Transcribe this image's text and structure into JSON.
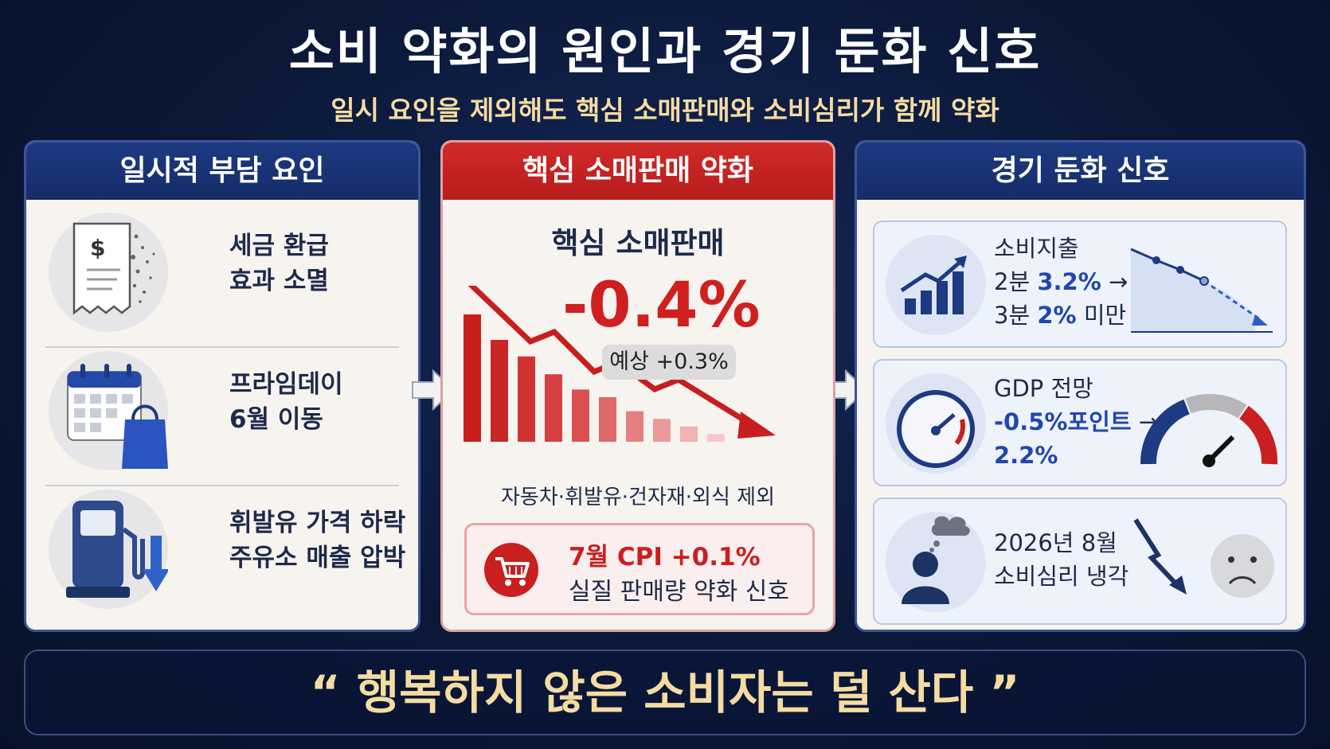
{
  "title": "소비 약화의 원인과 경기 둔화 신호",
  "subtitle": "일시 요인을 제외해도 핵심 소매판매와 소비심리가 함께 약화",
  "panel1": {
    "header": "일시적 부담 요인",
    "items": [
      {
        "line1": "세금 환급",
        "line2": "효과 소멸",
        "icon": "receipt-dollar-icon"
      },
      {
        "line1": "프라임데이",
        "line2": "6월 이동",
        "icon": "calendar-shopping-bag-icon"
      },
      {
        "line1": "휘발유 가격 하락",
        "line2": "주유소 매출 압박",
        "icon": "gas-pump-down-arrow-icon"
      }
    ]
  },
  "panel2": {
    "header": "핵심 소매판매 약화",
    "core_title": "핵심 소매판매",
    "core_value": "-0.4%",
    "expected": "예상 +0.3%",
    "exclude_note": "자동차·휘발유·건자재·외식 제외",
    "cpi_line1": "7월 CPI +0.1%",
    "cpi_line2": "실질 판매량 약화 신호",
    "bar_levels": [
      1.0,
      0.8,
      0.67,
      0.53,
      0.41,
      0.35,
      0.24,
      0.18,
      0.12,
      0.06
    ]
  },
  "panel3": {
    "header": "경기 둔화 신호",
    "spending": {
      "label": "소비지출",
      "q2_prefix": "2분",
      "q2_value": "3.2%",
      "arrow": "→",
      "q3_prefix": "3분",
      "q3_value": "2%",
      "q3_suffix": "미만"
    },
    "gdp": {
      "label": "GDP 전망",
      "change": "-0.5%포인트",
      "arrow": "→",
      "value": "2.2%"
    },
    "sentiment": {
      "line1": "2026년 8월",
      "line2": "소비심리 냉각"
    }
  },
  "quote": "“ 행복하지 않은 소비자는 덜 산다 ”",
  "colors": {
    "navy": "#152c68",
    "red": "#c91f1f",
    "gold": "#f4dca2",
    "blue": "#1f47b0"
  }
}
